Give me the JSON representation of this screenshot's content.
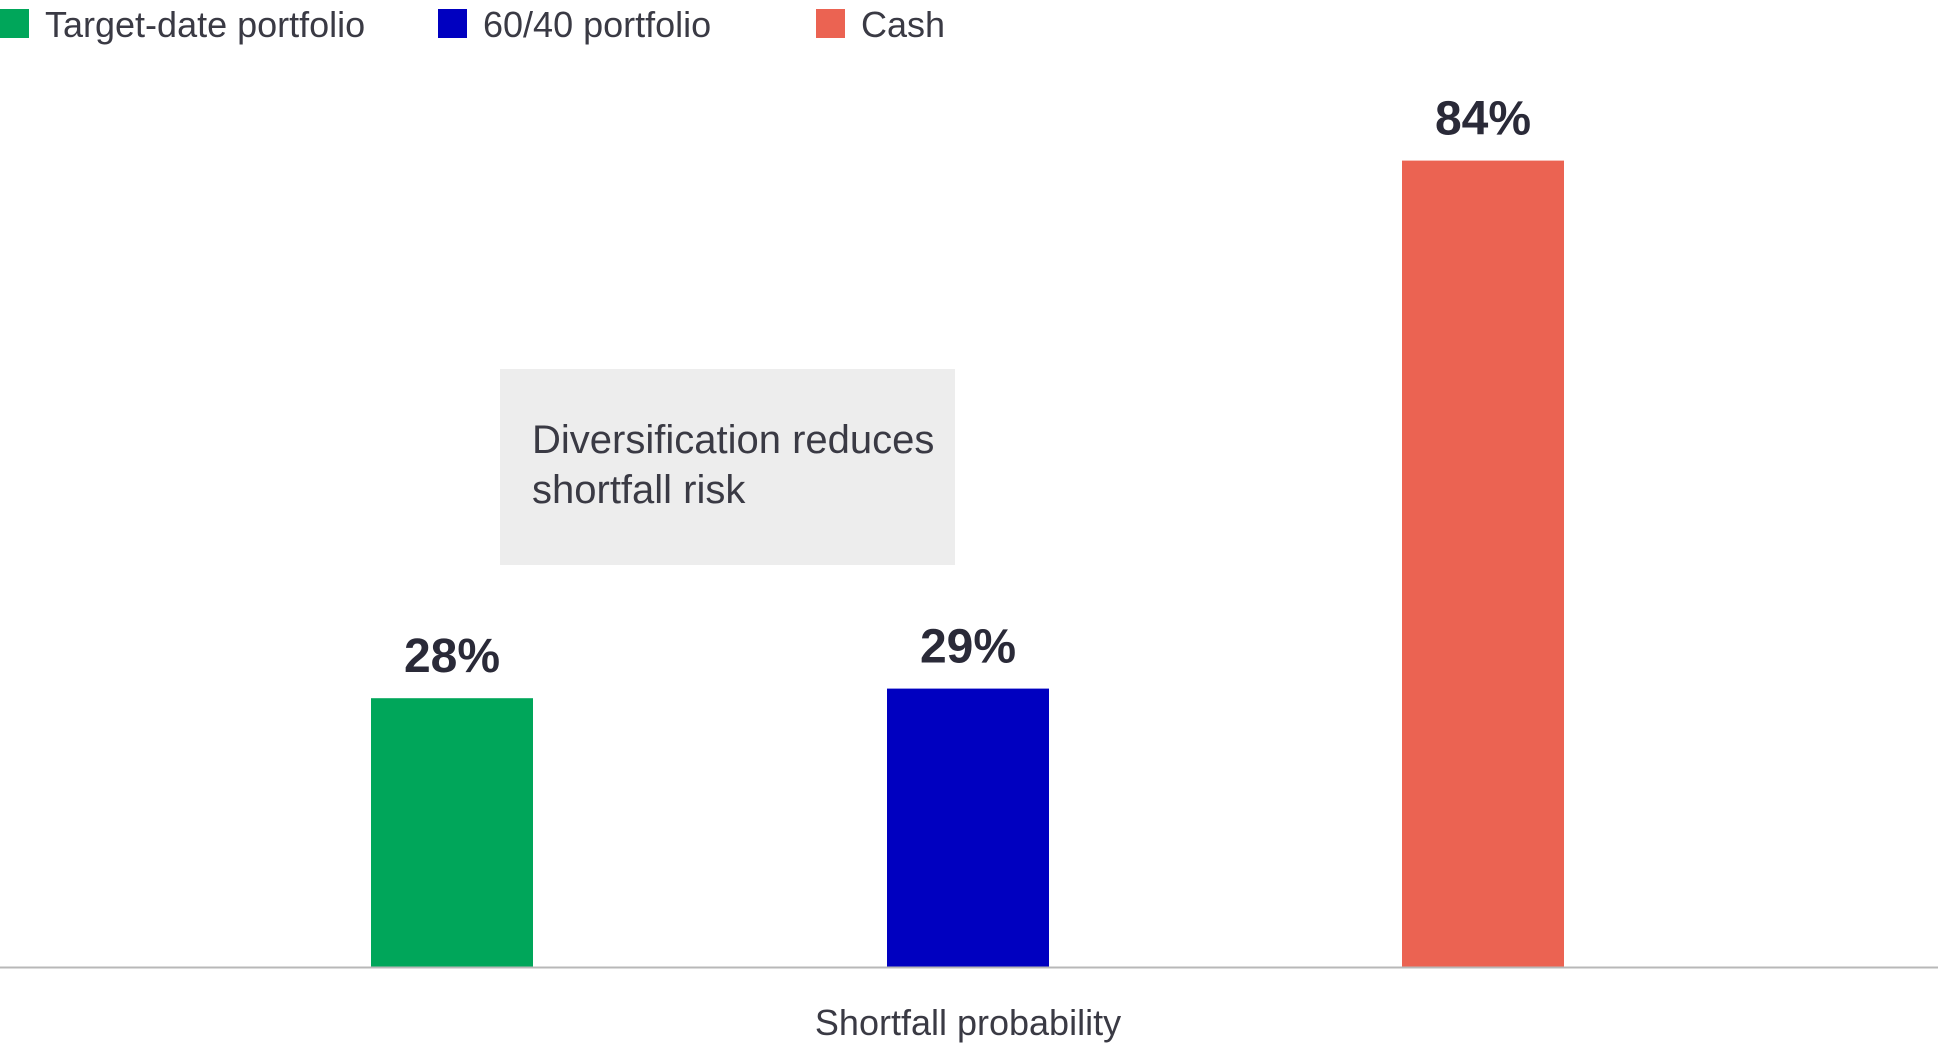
{
  "chart_data": {
    "type": "bar",
    "title": "",
    "xlabel": "Shortfall probability",
    "ylabel": "",
    "ylim": [
      0,
      100
    ],
    "grid": false,
    "legend_position": "top-left",
    "categories": [
      "Shortfall probability"
    ],
    "series": [
      {
        "name": "Target-date portfolio",
        "values": [
          28
        ],
        "color": "#00a65a",
        "label": "28%"
      },
      {
        "name": "60/40 portfolio",
        "values": [
          29
        ],
        "color": "#0000c0",
        "label": "29%"
      },
      {
        "name": "Cash",
        "values": [
          84
        ],
        "color": "#eb6352",
        "label": "84%"
      }
    ],
    "annotation": {
      "lines": [
        "Diversification reduces",
        "shortfall risk"
      ],
      "background": "#ededed"
    },
    "axis_color": "#b8b8b8"
  }
}
